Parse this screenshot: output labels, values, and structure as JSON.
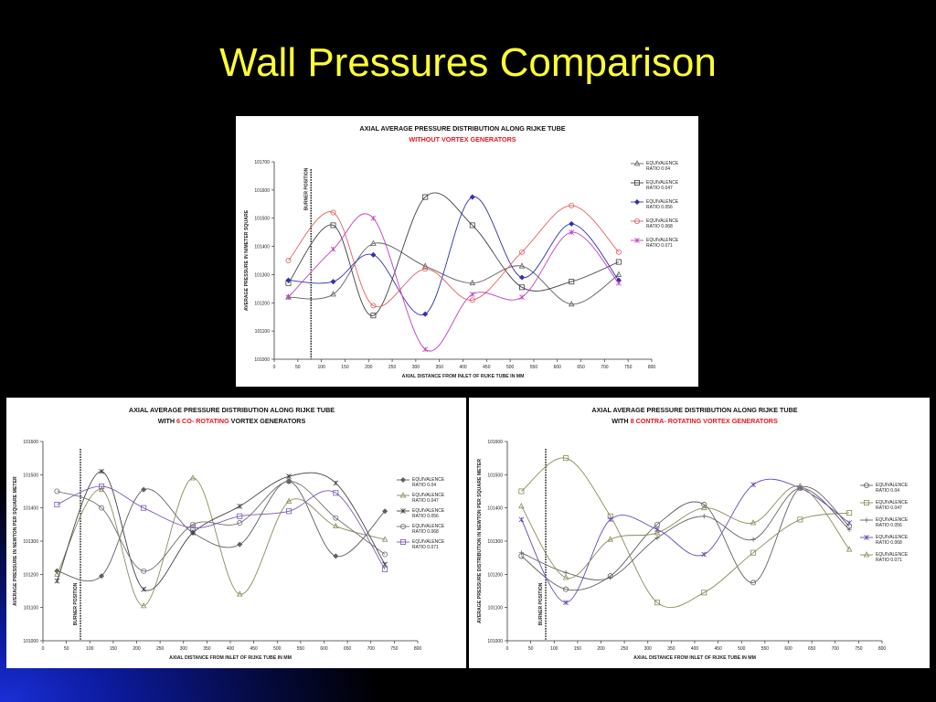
{
  "slide": {
    "title": "Wall Pressures Comparison"
  },
  "colors": {
    "background": "#000000",
    "title": "#ffff33",
    "subtitle_red": "#e8141e",
    "ratio_0_04": "#606060",
    "ratio_0_047": "#8a8a5a",
    "ratio_0_056": "#3c3cc0",
    "ratio_0_068": "#e06060",
    "ratio_0_071": "#c040c0"
  },
  "chart_data": [
    {
      "id": "top",
      "type": "line",
      "title": "AXIAL AVERAGE PRESSURE DISTRIBUTION ALONG RIJKE TUBE",
      "subtitle_parts": [
        {
          "text": "WITHOUT VORTEX GENERATORS",
          "red": true
        }
      ],
      "xlabel": "AXIAL DISTANCE FROM INLET OF RIJKE TUBE IN MM",
      "ylabel": "AVERAGE PRESSURE IN N/METER SQUARE",
      "xlim": [
        0,
        800
      ],
      "xticks": [
        "0",
        "50",
        "100",
        "150",
        "200",
        "250",
        "300",
        "350",
        "400",
        "450",
        "500",
        "550",
        "600",
        "650",
        "700",
        "750",
        "800"
      ],
      "ylim": [
        101000,
        101700
      ],
      "yticks": [
        "101000",
        "101100",
        "101200",
        "101300",
        "101400",
        "101500",
        "101600",
        "101700"
      ],
      "burner": {
        "x": 78,
        "label": "BURNER POSITION",
        "label_pos": "top"
      },
      "legend_position": "right",
      "series": [
        {
          "name": "EQUIVALENCE RATIO 0.04",
          "marker": "triangle",
          "color": "#606060",
          "x": [
            30,
            125,
            210,
            320,
            420,
            525,
            630,
            730
          ],
          "y": [
            101220,
            101230,
            101410,
            101330,
            101270,
            101330,
            101195,
            101300
          ]
        },
        {
          "name": "EQUIVALENCE RATIO 0.047",
          "marker": "square",
          "color": "#404040",
          "x": [
            30,
            125,
            210,
            320,
            420,
            525,
            630,
            730
          ],
          "y": [
            101270,
            101475,
            101155,
            101575,
            101475,
            101255,
            101275,
            101345
          ]
        },
        {
          "name": "EQUIVALENCE RATIO 0.056",
          "marker": "diamond",
          "color": "#3030b0",
          "x": [
            30,
            125,
            210,
            320,
            420,
            525,
            630,
            730
          ],
          "y": [
            101280,
            101275,
            101370,
            101160,
            101575,
            101290,
            101480,
            101280
          ]
        },
        {
          "name": "EQUIVALENCE RATIO 0.068",
          "marker": "circle",
          "color": "#e06060",
          "x": [
            30,
            125,
            210,
            320,
            420,
            525,
            630,
            730
          ],
          "y": [
            101350,
            101520,
            101190,
            101320,
            101210,
            101380,
            101545,
            101380
          ]
        },
        {
          "name": "EQUIVALENCE RATIO 0.071",
          "marker": "star",
          "color": "#c040c0",
          "x": [
            30,
            125,
            210,
            320,
            420,
            525,
            630,
            730
          ],
          "y": [
            101220,
            101390,
            101500,
            101035,
            101230,
            101220,
            101450,
            101270
          ]
        }
      ]
    },
    {
      "id": "left",
      "type": "line",
      "title": "AXIAL AVERAGE PRESSURE DISTRIBUTION ALONG RIJKE TUBE",
      "subtitle_parts": [
        {
          "text": "WITH ",
          "red": false
        },
        {
          "text": "6 CO- ROTATING",
          "red": true
        },
        {
          "text": " VORTEX GENERATORS",
          "red": false
        }
      ],
      "xlabel": "AXIAL DISTANCE FROM INLET OF RIJKE TUBE IN MM",
      "ylabel": "AVERAGE PRESSURE IN NEWTON PER SQUARE METER",
      "xlim": [
        0,
        800
      ],
      "xticks": [
        "0",
        "50",
        "100",
        "150",
        "200",
        "250",
        "300",
        "350",
        "400",
        "450",
        "500",
        "550",
        "600",
        "650",
        "700",
        "750",
        "800"
      ],
      "ylim": [
        101000,
        101600
      ],
      "yticks": [
        "101000",
        "101100",
        "101200",
        "101300",
        "101400",
        "101500",
        "101600"
      ],
      "burner": {
        "x": 80,
        "label": "BURNER POSITION",
        "label_pos": "bottom"
      },
      "legend_position": "right",
      "series": [
        {
          "name": "EQUIVALENCE RATIO 0.04",
          "marker": "diamond",
          "color": "#606060",
          "x": [
            30,
            125,
            215,
            320,
            420,
            525,
            625,
            730
          ],
          "y": [
            101210,
            101195,
            101455,
            101325,
            101290,
            101480,
            101255,
            101390
          ]
        },
        {
          "name": "EQUIVALENCE RATIO 0.047",
          "marker": "triangle",
          "color": "#8a8a5a",
          "x": [
            30,
            125,
            215,
            320,
            420,
            525,
            625,
            730
          ],
          "y": [
            101200,
            101455,
            101105,
            101490,
            101140,
            101420,
            101345,
            101305
          ]
        },
        {
          "name": "EQUIVALENCE RATIO 0.056",
          "marker": "star",
          "color": "#404040",
          "x": [
            30,
            125,
            215,
            320,
            420,
            525,
            625,
            730
          ],
          "y": [
            101180,
            101510,
            101155,
            101325,
            101405,
            101495,
            101475,
            101230
          ]
        },
        {
          "name": "EQUIVALENCE RATIO 0.068",
          "marker": "circle",
          "color": "#707070",
          "x": [
            30,
            125,
            215,
            320,
            420,
            525,
            625,
            730
          ],
          "y": [
            101450,
            101400,
            101210,
            101350,
            101355,
            101480,
            101370,
            101260
          ]
        },
        {
          "name": "EQUIVALENCE RATIO 0.071",
          "marker": "square",
          "color": "#7a5ab0",
          "x": [
            30,
            125,
            215,
            320,
            420,
            525,
            625,
            730
          ],
          "y": [
            101410,
            101465,
            101400,
            101340,
            101375,
            101390,
            101445,
            101215
          ]
        }
      ]
    },
    {
      "id": "right",
      "type": "line",
      "title": "AXIAL AVERAGE PRESSURE DISTRIBUTION ALONG RIJKE TUBE",
      "subtitle_parts": [
        {
          "text": "WITH ",
          "red": false
        },
        {
          "text": "8 CONTRA- ROTATING VORTEX GENERATORS",
          "red": true
        }
      ],
      "xlabel": "AXIAL DISTANCE FROM INLET OF RIJKE TUBE IN MM",
      "ylabel": "AVERAGE PRESSURE DISTRIBUTION IN NEWTON PER SQUARE METER",
      "xlim": [
        0,
        800
      ],
      "xticks": [
        "0",
        "50",
        "100",
        "150",
        "200",
        "250",
        "300",
        "350",
        "400",
        "450",
        "500",
        "550",
        "600",
        "650",
        "700",
        "750",
        "800"
      ],
      "ylim": [
        101000,
        101600
      ],
      "yticks": [
        "101000",
        "101100",
        "101200",
        "101300",
        "101400",
        "101500",
        "101600"
      ],
      "burner": {
        "x": 82,
        "label": "BURNER POSITION",
        "label_pos": "bottom"
      },
      "legend_position": "right",
      "series": [
        {
          "name": "EQUIVALENCE RATIO 0.04",
          "marker": "circle",
          "color": "#606060",
          "x": [
            30,
            125,
            220,
            320,
            420,
            525,
            625,
            730
          ],
          "y": [
            101255,
            101155,
            101195,
            101350,
            101410,
            101175,
            101460,
            101345
          ]
        },
        {
          "name": "EQUIVALENCE RATIO 0.047",
          "marker": "square",
          "color": "#8a8a5a",
          "x": [
            30,
            125,
            220,
            320,
            420,
            525,
            625,
            730
          ],
          "y": [
            101450,
            101550,
            101375,
            101115,
            101145,
            101265,
            101365,
            101385
          ]
        },
        {
          "name": "EQUIVALENCE RATIO 0.056",
          "marker": "plus",
          "color": "#606060",
          "x": [
            30,
            125,
            220,
            320,
            420,
            525,
            625,
            730
          ],
          "y": [
            101265,
            101205,
            101190,
            101310,
            101375,
            101305,
            101460,
            101335
          ]
        },
        {
          "name": "EQUIVALENCE RATIO 0.068",
          "marker": "star",
          "color": "#6a4ab0",
          "x": [
            30,
            125,
            220,
            320,
            420,
            525,
            625,
            730
          ],
          "y": [
            101365,
            101115,
            101365,
            101335,
            101260,
            101470,
            101460,
            101355
          ]
        },
        {
          "name": "EQUIVALENCE RATIO 0.071",
          "marker": "triangle",
          "color": "#8a8a5a",
          "x": [
            30,
            125,
            220,
            320,
            420,
            525,
            625,
            730
          ],
          "y": [
            101405,
            101190,
            101305,
            101325,
            101400,
            101355,
            101465,
            101275
          ]
        }
      ]
    }
  ]
}
